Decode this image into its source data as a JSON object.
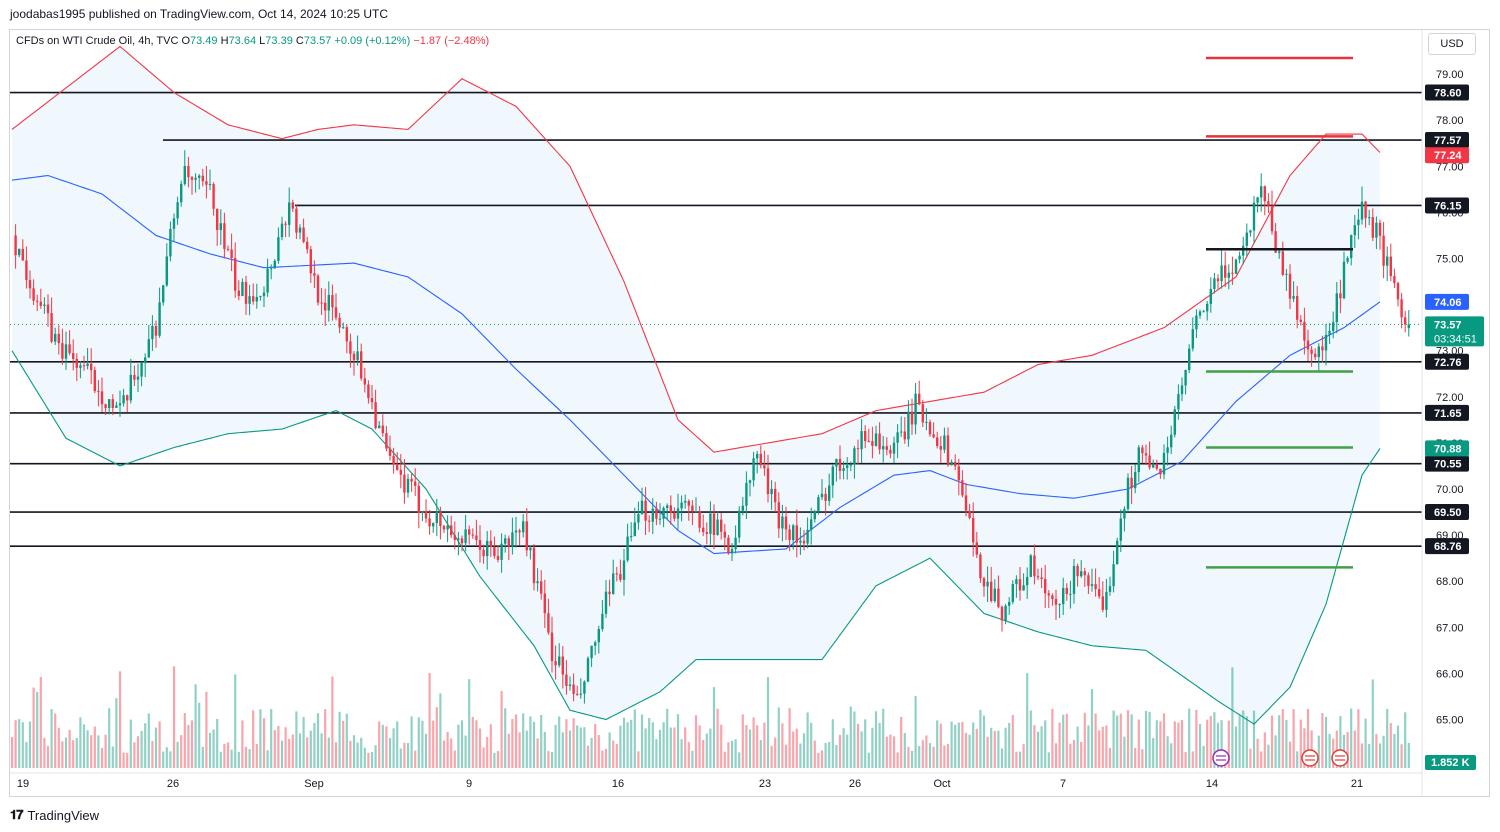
{
  "header": {
    "published": "joodabas1995 published on TradingView.com, Oct 14, 2024 10:25 UTC"
  },
  "symbol": {
    "name": "CFDs on WTI Crude Oil, 4h, TVC",
    "open_label": "O",
    "open": "73.49",
    "high_label": "H",
    "high": "73.64",
    "low_label": "L",
    "low": "73.39",
    "close_label": "C",
    "close": "73.57",
    "change": "+0.09 (+0.12%)",
    "change_day": "−1.87 (−2.48%)"
  },
  "currency": "USD",
  "footer": {
    "brand": "TradingView"
  },
  "colors": {
    "up": "#089981",
    "down": "#f23645",
    "upper_band": "#f23645",
    "basis": "#2962ff",
    "lower_band": "#089981",
    "band_fill": "#e3f0fb",
    "level": "#131722"
  },
  "chart_data": {
    "type": "candlestick",
    "x_tick_labels": [
      "19",
      "26",
      "Sep",
      "9",
      "16",
      "23",
      "26",
      "Oct",
      "7",
      "14",
      "21"
    ],
    "y_ticks": [
      79.0,
      78.0,
      77.0,
      76.0,
      75.0,
      74.0,
      73.0,
      72.0,
      71.0,
      70.0,
      69.0,
      68.0,
      67.0,
      66.0,
      65.0
    ],
    "y_tick_labels": [
      "79.00",
      "78.00",
      "77.00",
      "76.00",
      "75.00",
      "74.00",
      "73.00",
      "72.00",
      "71.00",
      "70.00",
      "69.00",
      "68.00",
      "67.00",
      "66.00",
      "65.00"
    ],
    "ylim": [
      64.0,
      80.5
    ],
    "horizontal_levels": [
      {
        "price": 78.6,
        "label": "78.60"
      },
      {
        "price": 77.57,
        "label": "77.57"
      },
      {
        "price": 76.15,
        "label": "76.15"
      },
      {
        "price": 72.76,
        "label": "72.76"
      },
      {
        "price": 71.65,
        "label": "71.65"
      },
      {
        "price": 70.55,
        "label": "70.55"
      },
      {
        "price": 69.5,
        "label": "69.50"
      },
      {
        "price": 68.76,
        "label": "68.76"
      }
    ],
    "price_badges": [
      {
        "price": 77.24,
        "label": "77.24",
        "kind": "upper_band"
      },
      {
        "price": 74.06,
        "label": "74.06",
        "kind": "basis"
      },
      {
        "price": 73.57,
        "label": "73.57",
        "countdown": "03:34:51",
        "kind": "last"
      },
      {
        "price": 70.88,
        "label": "70.88",
        "kind": "lower_band"
      }
    ],
    "target_lines": [
      {
        "price": 79.35,
        "kind": "resistance"
      },
      {
        "price": 77.65,
        "kind": "resistance"
      },
      {
        "price": 75.2,
        "kind": "pivot"
      },
      {
        "price": 72.55,
        "kind": "support"
      },
      {
        "price": 70.9,
        "kind": "support"
      },
      {
        "price": 68.3,
        "kind": "support"
      }
    ],
    "volume_last": "1.852 K",
    "bollinger": {
      "upper": [
        [
          0,
          77.8
        ],
        [
          30,
          79.6
        ],
        [
          45,
          78.6
        ],
        [
          60,
          77.9
        ],
        [
          75,
          77.6
        ],
        [
          85,
          77.8
        ],
        [
          95,
          77.9
        ],
        [
          110,
          77.8
        ],
        [
          125,
          78.9
        ],
        [
          140,
          78.3
        ],
        [
          155,
          77.0
        ],
        [
          170,
          74.5
        ],
        [
          185,
          71.5
        ],
        [
          195,
          70.8
        ],
        [
          210,
          71.0
        ],
        [
          225,
          71.2
        ],
        [
          240,
          71.7
        ],
        [
          255,
          71.9
        ],
        [
          270,
          72.1
        ],
        [
          285,
          72.7
        ],
        [
          300,
          72.9
        ],
        [
          320,
          73.5
        ],
        [
          340,
          74.6
        ],
        [
          355,
          76.8
        ],
        [
          365,
          77.7
        ],
        [
          375,
          77.7
        ],
        [
          380,
          77.3
        ]
      ],
      "basis": [
        [
          0,
          76.7
        ],
        [
          10,
          76.8
        ],
        [
          25,
          76.4
        ],
        [
          40,
          75.5
        ],
        [
          55,
          75.1
        ],
        [
          70,
          74.8
        ],
        [
          95,
          74.9
        ],
        [
          110,
          74.6
        ],
        [
          125,
          73.8
        ],
        [
          140,
          72.6
        ],
        [
          155,
          71.5
        ],
        [
          170,
          70.3
        ],
        [
          185,
          69.1
        ],
        [
          195,
          68.6
        ],
        [
          215,
          68.7
        ],
        [
          230,
          69.6
        ],
        [
          245,
          70.3
        ],
        [
          255,
          70.4
        ],
        [
          265,
          70.1
        ],
        [
          280,
          69.9
        ],
        [
          295,
          69.8
        ],
        [
          310,
          70.0
        ],
        [
          325,
          70.6
        ],
        [
          340,
          71.9
        ],
        [
          355,
          72.9
        ],
        [
          370,
          73.5
        ],
        [
          380,
          74.06
        ]
      ],
      "lower": [
        [
          0,
          73.0
        ],
        [
          15,
          71.1
        ],
        [
          30,
          70.5
        ],
        [
          45,
          70.9
        ],
        [
          60,
          71.2
        ],
        [
          75,
          71.3
        ],
        [
          90,
          71.7
        ],
        [
          100,
          71.3
        ],
        [
          115,
          70.0
        ],
        [
          130,
          68.1
        ],
        [
          145,
          66.6
        ],
        [
          155,
          65.2
        ],
        [
          165,
          65.0
        ],
        [
          180,
          65.6
        ],
        [
          190,
          66.3
        ],
        [
          205,
          66.3
        ],
        [
          225,
          66.3
        ],
        [
          240,
          67.9
        ],
        [
          255,
          68.5
        ],
        [
          270,
          67.3
        ],
        [
          285,
          66.9
        ],
        [
          300,
          66.6
        ],
        [
          315,
          66.5
        ],
        [
          335,
          65.4
        ],
        [
          345,
          64.9
        ],
        [
          355,
          65.7
        ],
        [
          365,
          67.5
        ],
        [
          375,
          70.3
        ],
        [
          380,
          70.88
        ]
      ]
    },
    "close_path": [
      [
        0,
        75.5
      ],
      [
        12,
        73.2
      ],
      [
        20,
        72.6
      ],
      [
        30,
        71.6
      ],
      [
        40,
        73.6
      ],
      [
        47,
        76.8
      ],
      [
        55,
        76.4
      ],
      [
        63,
        74.2
      ],
      [
        70,
        74.4
      ],
      [
        77,
        76.2
      ],
      [
        85,
        74.3
      ],
      [
        92,
        73.5
      ],
      [
        98,
        72.4
      ],
      [
        105,
        70.5
      ],
      [
        115,
        69.5
      ],
      [
        125,
        68.9
      ],
      [
        135,
        68.6
      ],
      [
        142,
        69.2
      ],
      [
        150,
        66.5
      ],
      [
        157,
        65.3
      ],
      [
        165,
        67.5
      ],
      [
        175,
        69.5
      ],
      [
        185,
        69.6
      ],
      [
        193,
        69.3
      ],
      [
        200,
        68.8
      ],
      [
        207,
        70.8
      ],
      [
        212,
        69.5
      ],
      [
        220,
        68.8
      ],
      [
        228,
        70.4
      ],
      [
        238,
        71.2
      ],
      [
        245,
        70.8
      ],
      [
        251,
        71.8
      ],
      [
        257,
        71.2
      ],
      [
        263,
        70.3
      ],
      [
        268,
        68.4
      ],
      [
        275,
        67.4
      ],
      [
        283,
        68.3
      ],
      [
        290,
        67.3
      ],
      [
        297,
        68.4
      ],
      [
        303,
        67.2
      ],
      [
        308,
        69.5
      ],
      [
        313,
        70.8
      ],
      [
        318,
        70.3
      ],
      [
        323,
        71.5
      ],
      [
        328,
        73.3
      ],
      [
        333,
        74.3
      ],
      [
        338,
        74.8
      ],
      [
        342,
        75.2
      ],
      [
        347,
        76.7
      ],
      [
        352,
        75.0
      ],
      [
        357,
        73.8
      ],
      [
        362,
        72.8
      ],
      [
        366,
        73.3
      ],
      [
        371,
        75.0
      ],
      [
        375,
        76.0
      ],
      [
        380,
        75.4
      ],
      [
        384,
        74.2
      ],
      [
        388,
        73.57
      ]
    ],
    "volumes_relative": "per-bar, scaled 0-1 of panel height"
  }
}
